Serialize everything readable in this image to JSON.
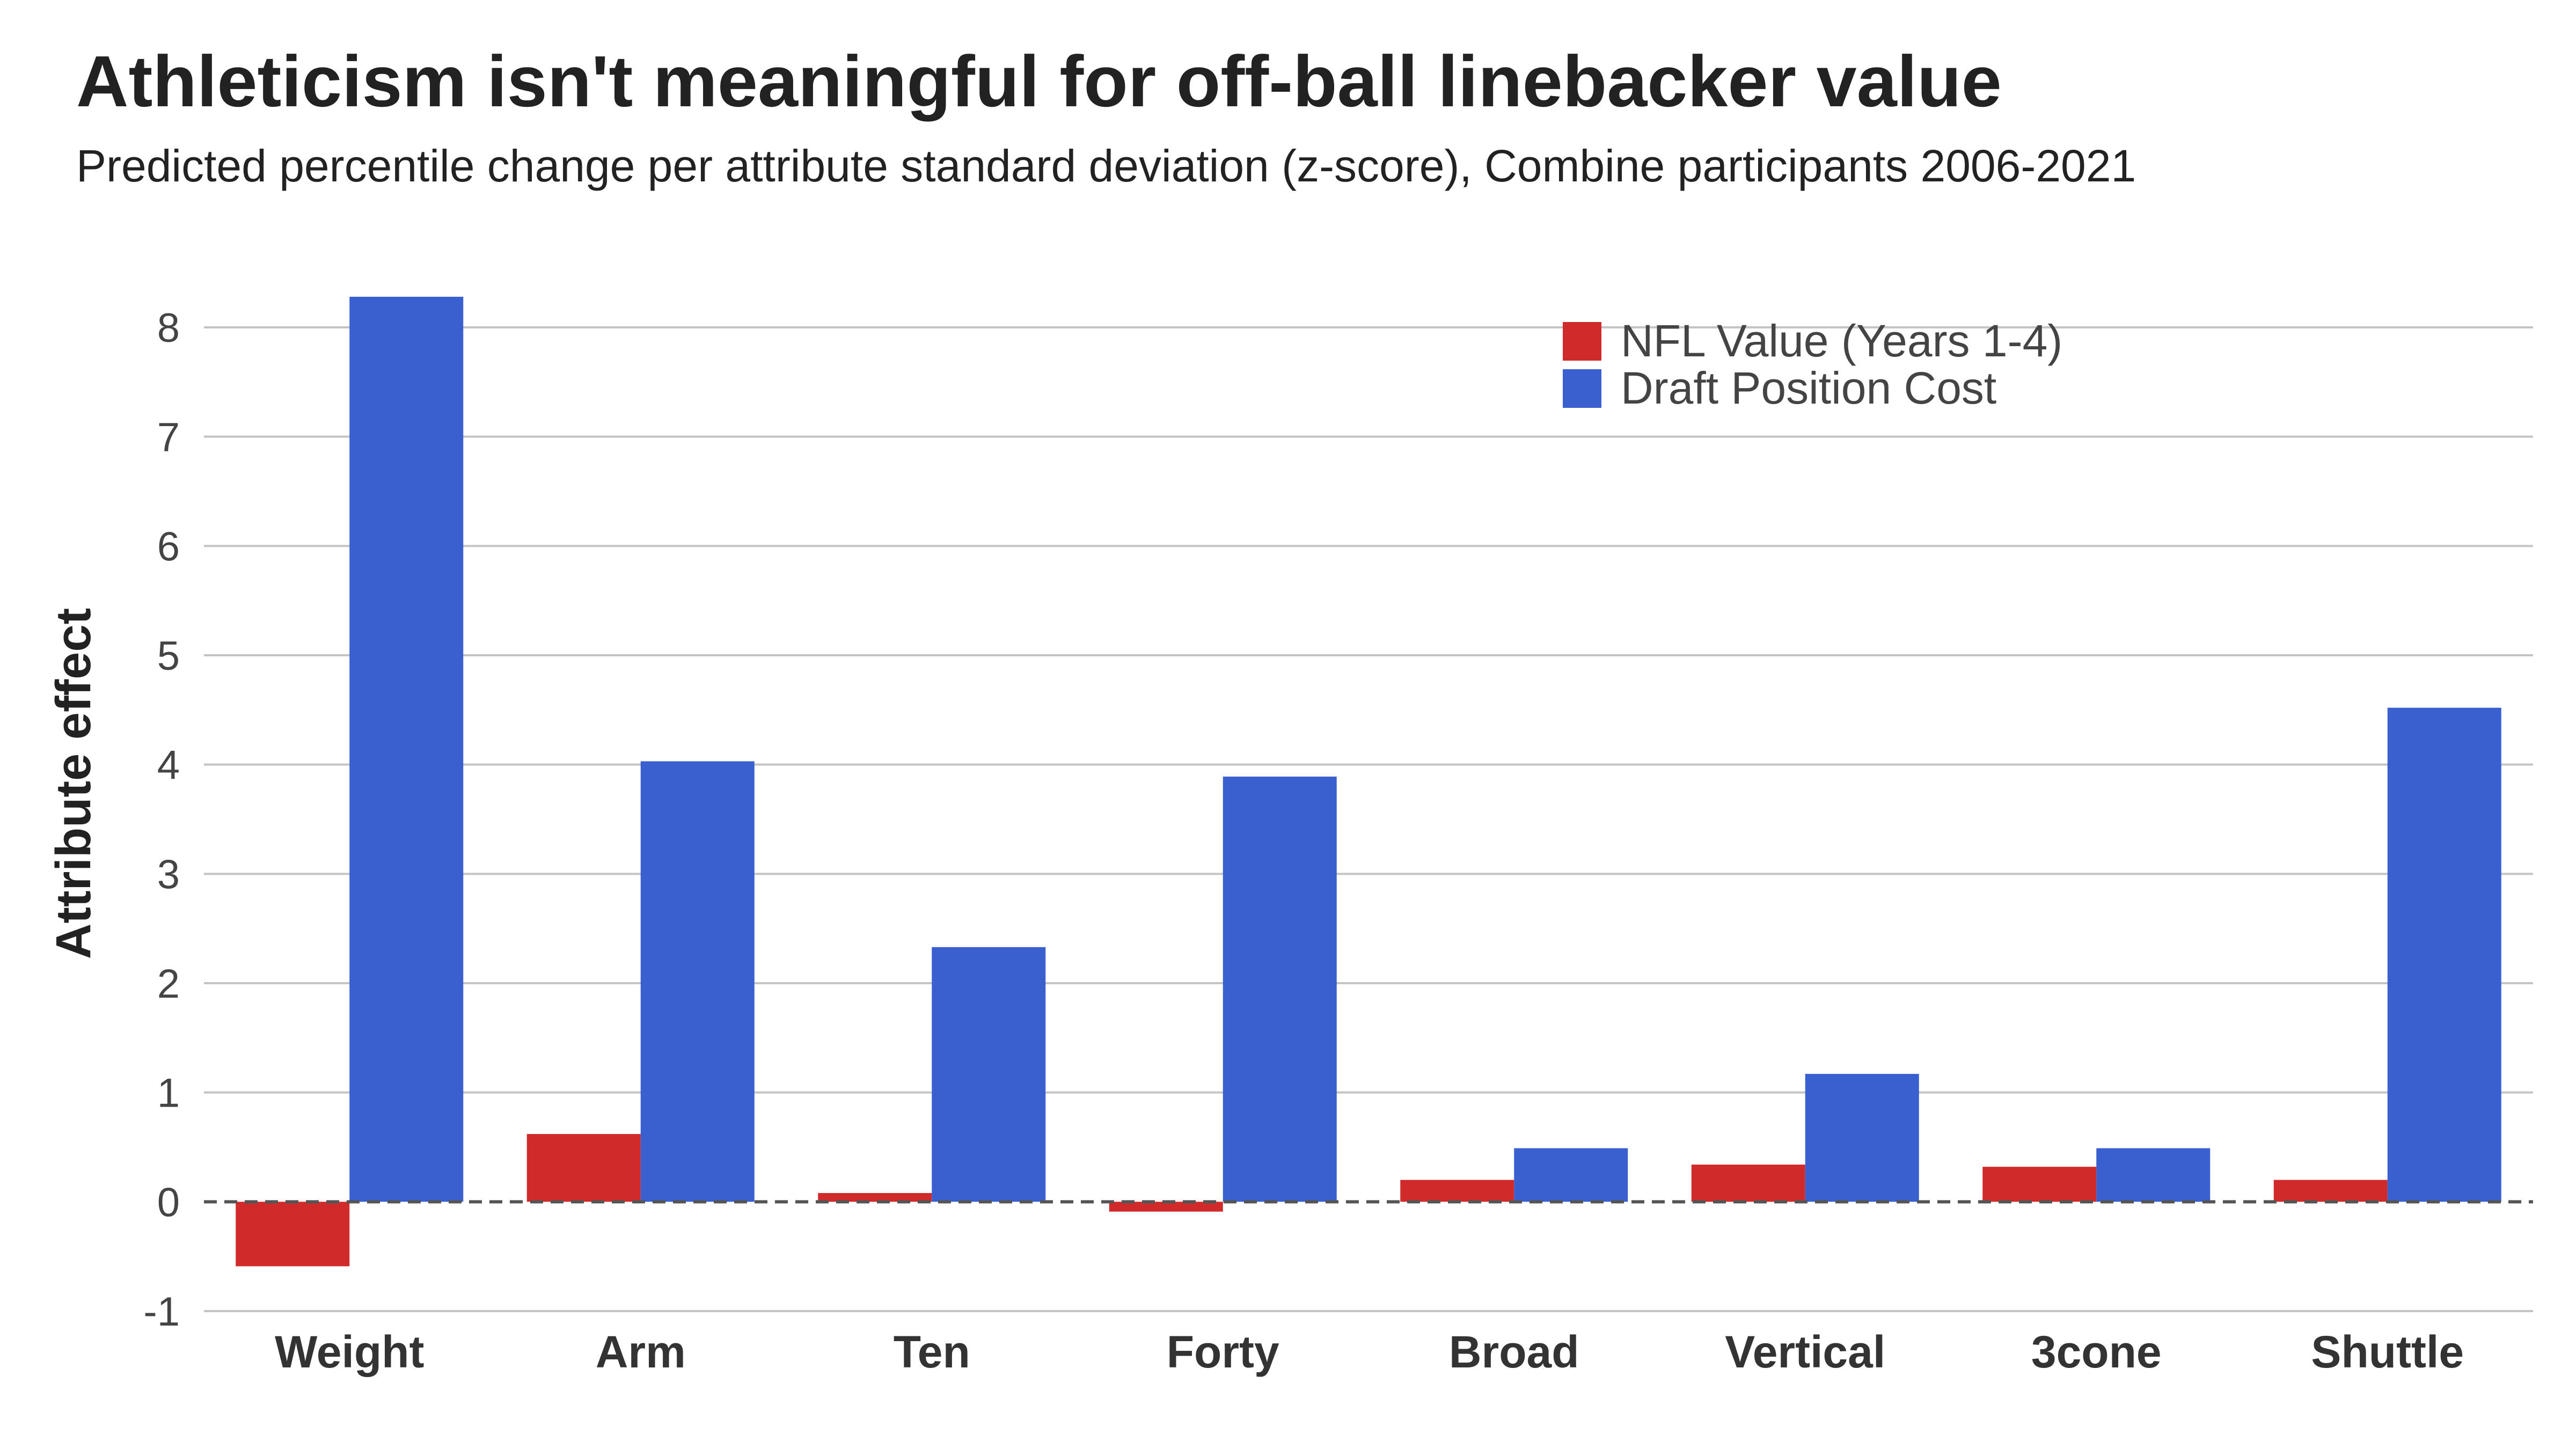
{
  "chart_data": {
    "type": "bar",
    "title": "Athleticism isn't meaningful for off-ball linebacker value",
    "subtitle": "Predicted percentile change per attribute standard deviation (z-score), Combine participants 2006-2021",
    "xlabel": "",
    "ylabel": "Attribute effect",
    "ylim": [
      -1,
      8.5
    ],
    "yticks": [
      -1,
      0,
      1,
      2,
      3,
      4,
      5,
      6,
      7,
      8
    ],
    "grid": true,
    "legend_position": "top-right",
    "categories": [
      "Weight",
      "Arm",
      "Ten",
      "Forty",
      "Broad",
      "Vertical",
      "3cone",
      "Shuttle"
    ],
    "series": [
      {
        "name": "NFL Value (Years 1-4)",
        "color": "#d02a2a",
        "values": [
          -0.59,
          0.62,
          0.08,
          -0.09,
          0.2,
          0.34,
          0.32,
          0.2
        ]
      },
      {
        "name": "Draft Position Cost",
        "color": "#3a60cf",
        "values": [
          8.28,
          4.03,
          2.33,
          3.89,
          0.49,
          1.17,
          0.49,
          4.52
        ]
      }
    ]
  }
}
